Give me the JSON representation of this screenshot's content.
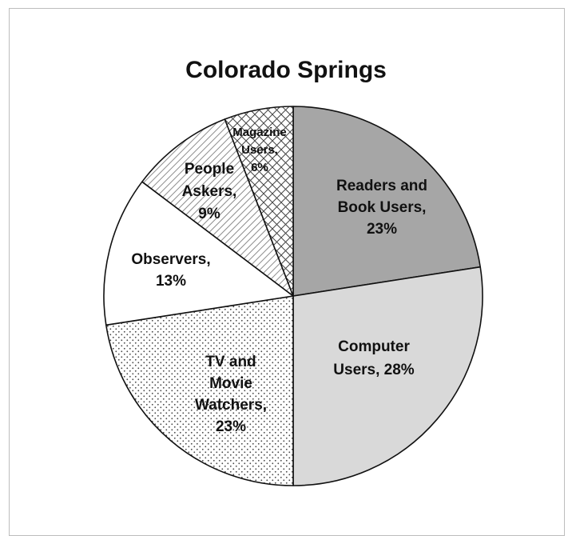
{
  "chart_data": {
    "type": "pie",
    "title": "Colorado Springs",
    "legend": "none",
    "slices": [
      {
        "name": "Readers and Book Users",
        "value": 23,
        "label_lines": [
          "Readers and",
          "Book Users,",
          "23%"
        ],
        "color": "#a6a6a6",
        "pattern": "solid"
      },
      {
        "name": "Computer Users",
        "value": 28,
        "label_lines": [
          "Computer",
          "Users, 28%"
        ],
        "color": "#d9d9d9",
        "pattern": "solid"
      },
      {
        "name": "TV and Movie Watchers",
        "value": 23,
        "label_lines": [
          "TV and",
          "Movie",
          "Watchers,",
          "23%"
        ],
        "color": "#ffffff",
        "pattern": "dots"
      },
      {
        "name": "Observers",
        "value": 13,
        "label_lines": [
          "Observers,",
          "13%"
        ],
        "color": "#ffffff",
        "pattern": "solid"
      },
      {
        "name": "People Askers",
        "value": 9,
        "label_lines": [
          "People",
          "Askers,",
          "9%"
        ],
        "color": "#ffffff",
        "pattern": "diagonal"
      },
      {
        "name": "Magazine Users",
        "value": 6,
        "label_lines": [
          "Magazine",
          "Users,",
          "6%"
        ],
        "color": "#ffffff",
        "pattern": "crosshatch"
      }
    ]
  }
}
